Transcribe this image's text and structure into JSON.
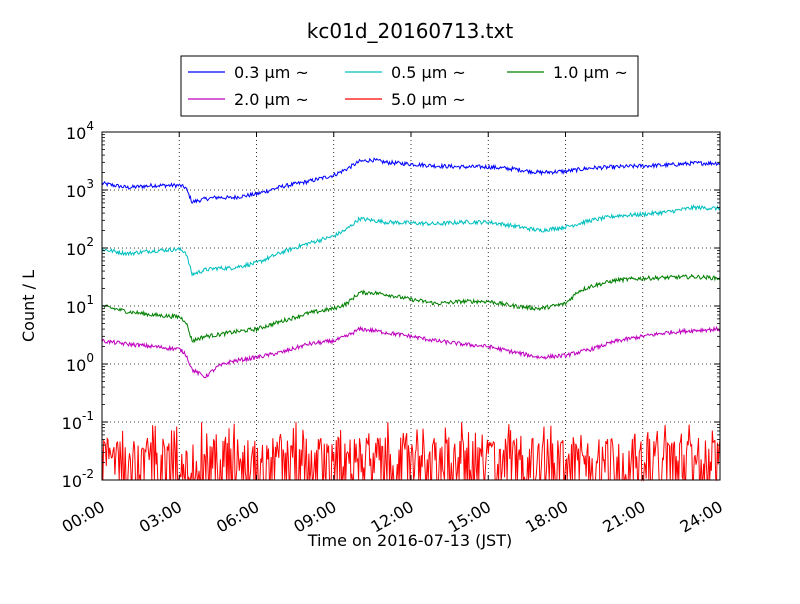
{
  "chart_data": {
    "type": "line",
    "title": "kc01d_20160713.txt",
    "xlabel": "Time on 2016-07-13 (JST)",
    "ylabel": "Count / L",
    "x_range": [
      "00:00",
      "24:00"
    ],
    "yscale": "log",
    "ylim": [
      0.01,
      10000
    ],
    "grid": true,
    "legend": {
      "placement": "top-center outside",
      "columns": 3
    },
    "x_tick_labels": [
      "00:00",
      "03:00",
      "06:00",
      "09:00",
      "12:00",
      "15:00",
      "18:00",
      "21:00",
      "24:00"
    ],
    "y_ticks": [
      {
        "base": "10",
        "exp": "-2"
      },
      {
        "base": "10",
        "exp": "-1"
      },
      {
        "base": "10",
        "exp": "0"
      },
      {
        "base": "10",
        "exp": "1"
      },
      {
        "base": "10",
        "exp": "2"
      },
      {
        "base": "10",
        "exp": "3"
      },
      {
        "base": "10",
        "exp": "4"
      }
    ],
    "series": [
      {
        "name": "0.3 μm ~",
        "color": "#0000ff",
        "x": [
          "00:00",
          "01:00",
          "02:00",
          "03:00",
          "03:15",
          "03:30",
          "04:00",
          "04:30",
          "05:00",
          "06:00",
          "07:00",
          "08:00",
          "09:00",
          "09:30",
          "10:00",
          "10:30",
          "11:00",
          "12:00",
          "13:00",
          "14:00",
          "15:00",
          "16:00",
          "17:00",
          "18:00",
          "19:00",
          "20:00",
          "21:00",
          "22:00",
          "23:00",
          "24:00"
        ],
        "values": [
          1300,
          1100,
          1200,
          1200,
          1100,
          620,
          700,
          750,
          730,
          850,
          1150,
          1400,
          1800,
          2300,
          3100,
          3300,
          3000,
          2800,
          2600,
          2500,
          2500,
          2300,
          2000,
          2100,
          2400,
          2500,
          2600,
          2700,
          2900,
          2900
        ]
      },
      {
        "name": "0.5 μm ~",
        "color": "#00bfbf",
        "x": [
          "00:00",
          "01:00",
          "02:00",
          "03:00",
          "03:15",
          "03:30",
          "04:00",
          "04:30",
          "05:00",
          "06:00",
          "07:00",
          "08:00",
          "09:00",
          "09:30",
          "10:00",
          "10:30",
          "11:00",
          "12:00",
          "13:00",
          "14:00",
          "15:00",
          "16:00",
          "17:00",
          "18:00",
          "19:00",
          "20:00",
          "21:00",
          "22:00",
          "23:00",
          "24:00"
        ],
        "values": [
          95,
          80,
          90,
          95,
          85,
          35,
          42,
          45,
          45,
          55,
          85,
          120,
          160,
          210,
          320,
          300,
          280,
          270,
          260,
          280,
          280,
          240,
          200,
          230,
          300,
          360,
          380,
          420,
          500,
          480
        ]
      },
      {
        "name": "1.0 μm ~",
        "color": "#008000",
        "x": [
          "00:00",
          "01:00",
          "02:00",
          "03:00",
          "03:15",
          "03:30",
          "04:00",
          "04:30",
          "05:00",
          "06:00",
          "07:00",
          "08:00",
          "09:00",
          "09:30",
          "10:00",
          "10:30",
          "11:00",
          "12:00",
          "13:00",
          "14:00",
          "15:00",
          "16:00",
          "17:00",
          "18:00",
          "18:30",
          "19:00",
          "20:00",
          "21:00",
          "22:00",
          "23:00",
          "24:00"
        ],
        "values": [
          10,
          8,
          7,
          6.5,
          5.5,
          2.5,
          3,
          3.2,
          3.5,
          4,
          5.5,
          7.5,
          9,
          11,
          17,
          17,
          16,
          13,
          11,
          12,
          12,
          10,
          9,
          11,
          18,
          22,
          28,
          30,
          31,
          32,
          30
        ]
      },
      {
        "name": "2.0 μm ~",
        "color": "#bf00bf",
        "x": [
          "00:00",
          "01:00",
          "02:00",
          "03:00",
          "03:15",
          "03:30",
          "04:00",
          "04:30",
          "05:00",
          "06:00",
          "07:00",
          "08:00",
          "09:00",
          "09:30",
          "10:00",
          "10:30",
          "11:00",
          "12:00",
          "13:00",
          "14:00",
          "15:00",
          "16:00",
          "17:00",
          "18:00",
          "19:00",
          "20:00",
          "21:00",
          "22:00",
          "23:00",
          "24:00"
        ],
        "values": [
          2.5,
          2.2,
          2.0,
          1.8,
          1.5,
          0.8,
          0.6,
          0.9,
          1.1,
          1.3,
          1.6,
          2.2,
          2.5,
          3,
          4,
          3.8,
          3.5,
          3,
          2.5,
          2.2,
          2,
          1.6,
          1.3,
          1.4,
          1.8,
          2.5,
          3,
          3.5,
          3.8,
          4
        ]
      },
      {
        "name": "5.0 μm ~",
        "color": "#ff0000",
        "x_range": [
          "00:00",
          "24:00"
        ],
        "noise_band": [
          0.01,
          0.1
        ],
        "typical": 0.03
      }
    ]
  }
}
